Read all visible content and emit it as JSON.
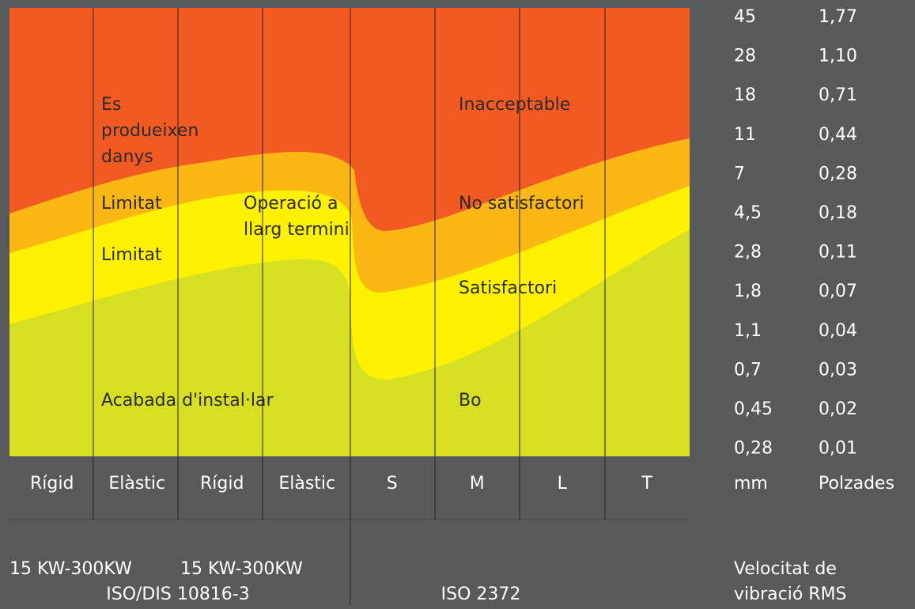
{
  "zones": {
    "left": [
      {
        "lines": [
          "Es",
          "produeixen",
          "danys"
        ]
      },
      {
        "lines": [
          "Limitat"
        ]
      },
      {
        "lines": [
          "Limitat"
        ]
      },
      {
        "lines": [
          "Acabada d'instal·lar"
        ]
      }
    ],
    "middle": [
      {
        "lines": [
          "Operació a",
          "llarg termini"
        ]
      }
    ],
    "right": [
      {
        "lines": [
          "Inacceptable"
        ]
      },
      {
        "lines": [
          "No satisfactori"
        ]
      },
      {
        "lines": [
          "Satisfactori"
        ]
      },
      {
        "lines": [
          "Bo"
        ]
      }
    ]
  },
  "columns": [
    "Rígid",
    "Elàstic",
    "Rígid",
    "Elàstic",
    "S",
    "M",
    "L",
    "T"
  ],
  "scale": {
    "headers": [
      "mm",
      "Polzades"
    ],
    "rows": [
      [
        "45",
        "1,77"
      ],
      [
        "28",
        "1,10"
      ],
      [
        "18",
        "0,71"
      ],
      [
        "11",
        "0,44"
      ],
      [
        "7",
        "0,28"
      ],
      [
        "4,5",
        "0,18"
      ],
      [
        "2,8",
        "0,11"
      ],
      [
        "1,8",
        "0,07"
      ],
      [
        "1,1",
        "0,04"
      ],
      [
        "0,7",
        "0,03"
      ],
      [
        "0,45",
        "0,02"
      ],
      [
        "0,28",
        "0,01"
      ]
    ]
  },
  "footer": {
    "power": [
      "15 KW-300KW",
      "15 KW-300KW"
    ],
    "standard_left": "ISO/DIS 10816-3",
    "standard_right": "ISO 2372",
    "measure": [
      "Velocitat de",
      "vibració RMS"
    ]
  }
}
